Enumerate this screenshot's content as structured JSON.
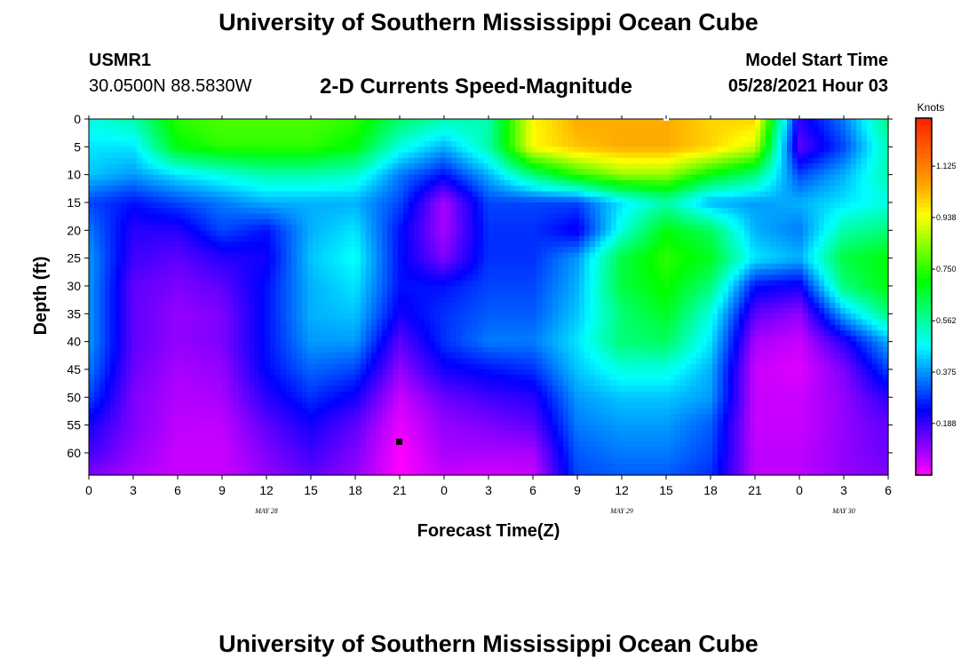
{
  "header": {
    "title": "University of Southern Mississippi Ocean Cube",
    "station": "USMR1",
    "coords": "30.0500N  88.5830W",
    "subtitle": "2-D Currents Speed-Magnitude",
    "model_label": "Model Start Time",
    "model_time": "05/28/2021 Hour 03"
  },
  "footer": {
    "title": "University of Southern Mississippi Ocean Cube"
  },
  "chart_data": {
    "type": "heatmap",
    "title": "2-D Currents Speed-Magnitude",
    "xlabel": "Forecast Time(Z)",
    "ylabel": "Depth (ft)",
    "x_ticks": [
      "0",
      "3",
      "6",
      "9",
      "12",
      "15",
      "18",
      "21",
      "0",
      "3",
      "6",
      "9",
      "12",
      "15",
      "18",
      "21",
      "0",
      "3",
      "6"
    ],
    "date_labels": [
      {
        "label": "MAY 28",
        "at_tick": 4
      },
      {
        "label": "MAY 29",
        "at_tick": 12
      },
      {
        "label": "MAY 30",
        "at_tick": 17
      }
    ],
    "xlim": [
      0,
      54
    ],
    "y_ticks": [
      "0",
      "5",
      "10",
      "15",
      "20",
      "25",
      "30",
      "35",
      "40",
      "45",
      "50",
      "55",
      "60"
    ],
    "ylim": [
      0,
      64
    ],
    "y_reversed": true,
    "colorbar": {
      "unit": "Knots",
      "ticks": [
        "0.188",
        "0.375",
        "0.562",
        "0.750",
        "0.938",
        "1.125"
      ],
      "range": [
        0,
        1.3
      ],
      "colors": [
        "#ff00ff",
        "#8000ff",
        "#0000ff",
        "#0080ff",
        "#00ffff",
        "#00ff80",
        "#00ff00",
        "#80ff00",
        "#ffff00",
        "#ffa000",
        "#ff6000",
        "#ff2000"
      ]
    },
    "field": {
      "x_hours": [
        0,
        3,
        6,
        9,
        12,
        15,
        18,
        21,
        24,
        27,
        30,
        33,
        36,
        39,
        42,
        45,
        48,
        51,
        54
      ],
      "depths_ft": [
        0,
        5,
        10,
        15,
        20,
        25,
        30,
        35,
        40,
        45,
        50,
        55,
        60,
        64
      ],
      "speed_knots": [
        [
          0.5,
          0.55,
          0.75,
          0.78,
          0.78,
          0.78,
          0.75,
          0.62,
          0.55,
          0.55,
          0.95,
          1.05,
          1.05,
          1.05,
          1.0,
          1.0,
          0.2,
          0.35,
          0.6
        ],
        [
          0.45,
          0.45,
          0.7,
          0.75,
          0.75,
          0.75,
          0.7,
          0.5,
          0.4,
          0.55,
          0.95,
          1.02,
          1.05,
          1.05,
          1.0,
          0.9,
          0.15,
          0.3,
          0.55
        ],
        [
          0.42,
          0.38,
          0.45,
          0.5,
          0.55,
          0.55,
          0.52,
          0.35,
          0.25,
          0.4,
          0.6,
          0.75,
          0.85,
          0.85,
          0.7,
          0.6,
          0.3,
          0.4,
          0.55
        ],
        [
          0.3,
          0.25,
          0.3,
          0.35,
          0.4,
          0.4,
          0.4,
          0.3,
          0.08,
          0.3,
          0.3,
          0.3,
          0.45,
          0.55,
          0.4,
          0.38,
          0.4,
          0.45,
          0.5
        ],
        [
          0.35,
          0.2,
          0.2,
          0.3,
          0.25,
          0.4,
          0.45,
          0.25,
          0.08,
          0.28,
          0.28,
          0.22,
          0.5,
          0.7,
          0.62,
          0.4,
          0.35,
          0.55,
          0.6
        ],
        [
          0.38,
          0.18,
          0.15,
          0.2,
          0.22,
          0.42,
          0.48,
          0.25,
          0.12,
          0.28,
          0.28,
          0.38,
          0.65,
          0.75,
          0.68,
          0.45,
          0.4,
          0.65,
          0.7
        ],
        [
          0.38,
          0.15,
          0.12,
          0.15,
          0.25,
          0.4,
          0.45,
          0.25,
          0.25,
          0.3,
          0.3,
          0.4,
          0.65,
          0.72,
          0.6,
          0.25,
          0.22,
          0.6,
          0.7
        ],
        [
          0.38,
          0.15,
          0.1,
          0.12,
          0.25,
          0.4,
          0.42,
          0.22,
          0.28,
          0.32,
          0.32,
          0.42,
          0.6,
          0.68,
          0.5,
          0.15,
          0.1,
          0.4,
          0.6
        ],
        [
          0.38,
          0.15,
          0.1,
          0.12,
          0.25,
          0.38,
          0.38,
          0.15,
          0.28,
          0.35,
          0.35,
          0.45,
          0.6,
          0.62,
          0.45,
          0.08,
          0.05,
          0.2,
          0.4
        ],
        [
          0.35,
          0.14,
          0.08,
          0.1,
          0.24,
          0.33,
          0.3,
          0.1,
          0.22,
          0.25,
          0.28,
          0.42,
          0.5,
          0.5,
          0.4,
          0.05,
          0.03,
          0.12,
          0.3
        ],
        [
          0.3,
          0.12,
          0.07,
          0.08,
          0.2,
          0.28,
          0.22,
          0.05,
          0.14,
          0.18,
          0.2,
          0.38,
          0.42,
          0.42,
          0.38,
          0.05,
          0.05,
          0.1,
          0.2
        ],
        [
          0.22,
          0.12,
          0.06,
          0.06,
          0.15,
          0.22,
          0.15,
          0.02,
          0.1,
          0.12,
          0.15,
          0.35,
          0.38,
          0.38,
          0.32,
          0.05,
          0.05,
          0.1,
          0.15
        ],
        [
          0.18,
          0.1,
          0.05,
          0.05,
          0.12,
          0.18,
          0.12,
          0.0,
          0.08,
          0.08,
          0.08,
          0.32,
          0.35,
          0.35,
          0.3,
          0.06,
          0.06,
          0.1,
          0.14
        ],
        [
          0.12,
          0.08,
          0.05,
          0.05,
          0.1,
          0.15,
          0.1,
          0.0,
          0.05,
          0.04,
          0.05,
          0.3,
          0.32,
          0.32,
          0.28,
          0.06,
          0.06,
          0.1,
          0.12
        ]
      ]
    }
  }
}
